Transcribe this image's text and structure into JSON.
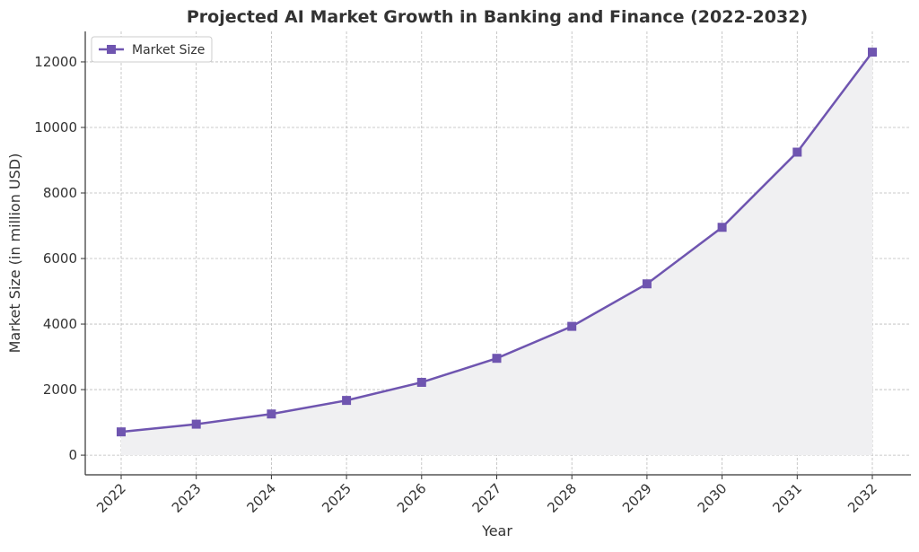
{
  "chart_data": {
    "type": "line",
    "title": "Projected AI Market Growth in Banking and Finance (2022-2032)",
    "xlabel": "Year",
    "ylabel": "Market Size (in million USD)",
    "categories": [
      "2022",
      "2023",
      "2024",
      "2025",
      "2026",
      "2027",
      "2028",
      "2029",
      "2030",
      "2031",
      "2032"
    ],
    "series": [
      {
        "name": "Market Size",
        "values": [
          710,
          945,
          1256,
          1670,
          2222,
          2955,
          3930,
          5227,
          6952,
          9246,
          12297
        ],
        "color": "#6f55b0",
        "marker": "square",
        "fill": "#f0f0f2"
      }
    ],
    "yticks": [
      0,
      2000,
      4000,
      6000,
      8000,
      10000,
      12000
    ],
    "ylim": [
      -600,
      12930
    ],
    "grid": true,
    "legend": "top-left"
  }
}
